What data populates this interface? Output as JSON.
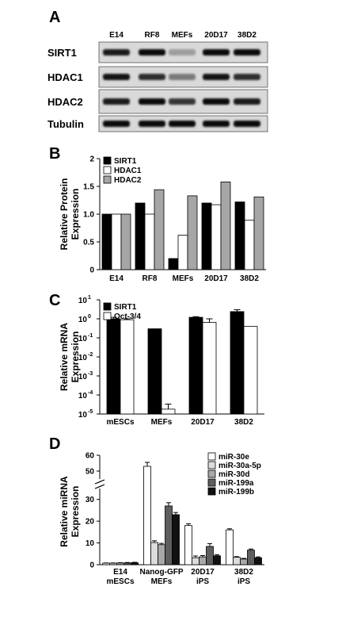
{
  "panels": {
    "a": "A",
    "b": "B",
    "c": "C",
    "d": "D"
  },
  "blot": {
    "lanes": [
      "E14",
      "RF8",
      "MEFs",
      "20D17",
      "38D2"
    ],
    "proteins": [
      "SIRT1",
      "HDAC1",
      "HDAC2",
      "Tubulin"
    ]
  },
  "chart_data": [
    {
      "type": "bar",
      "categories": [
        "E14",
        "RF8",
        "MEFs",
        "20D17",
        "38D2"
      ],
      "series": [
        {
          "name": "SIRT1",
          "values": [
            1.0,
            1.2,
            0.2,
            1.2,
            1.22
          ],
          "color": "#000000"
        },
        {
          "name": "HDAC1",
          "values": [
            1.0,
            1.0,
            0.62,
            1.17,
            0.89
          ],
          "color": "#ffffff"
        },
        {
          "name": "HDAC2",
          "values": [
            1.0,
            1.44,
            1.33,
            1.58,
            1.31
          ],
          "color": "#a6a6a6"
        }
      ],
      "ylabel": "Relative Protein Expression",
      "ylabel_lines": [
        "Relative Protein",
        "Expression"
      ],
      "yticks": [
        "0",
        "0.5",
        "1.0",
        "1.5",
        "2"
      ],
      "ylim": [
        0,
        2
      ],
      "legend": "top-left"
    },
    {
      "type": "bar",
      "categories": [
        "mESCs",
        "MEFs",
        "20D17",
        "38D2"
      ],
      "series": [
        {
          "name": "SIRT1",
          "values": [
            1.0,
            0.3,
            1.2,
            2.4
          ],
          "errors": [
            0.2,
            0,
            0.1,
            0.6
          ],
          "color": "#000000"
        },
        {
          "name": "Oct-3/4",
          "values": [
            0.9,
            1.8e-05,
            0.65,
            0.4
          ],
          "errors": [
            0.1,
            1.5e-05,
            0.35,
            0
          ],
          "color": "#ffffff"
        }
      ],
      "ylabel": "Relative mRNA Expression",
      "ylabel_lines": [
        "Relative mRNA",
        "Expression"
      ],
      "yscale": "log",
      "yticks": [
        "10",
        "10",
        "10",
        "10",
        "10",
        "10",
        "10"
      ],
      "ytick_exponents": [
        "1",
        "0",
        "-1",
        "-2",
        "-3",
        "-4",
        "-5"
      ],
      "ylim": [
        1e-05,
        10
      ],
      "legend": "top-left"
    },
    {
      "type": "bar",
      "categories": [
        "E14",
        "Nanog-GFP",
        "20D17",
        "38D2"
      ],
      "category_sublabels": [
        "mESCs",
        "MEFs",
        "iPS",
        "iPS"
      ],
      "series": [
        {
          "name": "miR-30e",
          "values": [
            0.7,
            53,
            18,
            16
          ],
          "errors": [
            0.1,
            2.5,
            0.8,
            0.5
          ],
          "color": "#ffffff"
        },
        {
          "name": "miR-30a-5p",
          "values": [
            0.7,
            10.2,
            3.2,
            3.4
          ],
          "errors": [
            0.1,
            0.8,
            0.8,
            0.3
          ],
          "color": "#dcdcdc"
        },
        {
          "name": "miR-30d",
          "values": [
            0.8,
            9.2,
            3.6,
            2.6
          ],
          "errors": [
            0.1,
            0.6,
            0.6,
            0.3
          ],
          "color": "#a8a8a8"
        },
        {
          "name": "miR-199a",
          "values": [
            0.8,
            27,
            8.4,
            6.7
          ],
          "errors": [
            0.2,
            1.5,
            1.3,
            0.5
          ],
          "color": "#5e5e5e"
        },
        {
          "name": "miR-199b",
          "values": [
            0.9,
            23,
            4.1,
            3.2
          ],
          "errors": [
            0.2,
            1.0,
            0.5,
            0.4
          ],
          "color": "#111111"
        }
      ],
      "ylabel": "Relative miRNA Expression",
      "ylabel_lines": [
        "Relative miRNA",
        "Expression"
      ],
      "yticks_lower": [
        "0",
        "10",
        "20",
        "30"
      ],
      "yticks_upper": [
        "50",
        "60"
      ],
      "ylim_lower": [
        0,
        35
      ],
      "ylim_upper": [
        45,
        60
      ],
      "axis_break": true,
      "legend": "top-right"
    }
  ]
}
